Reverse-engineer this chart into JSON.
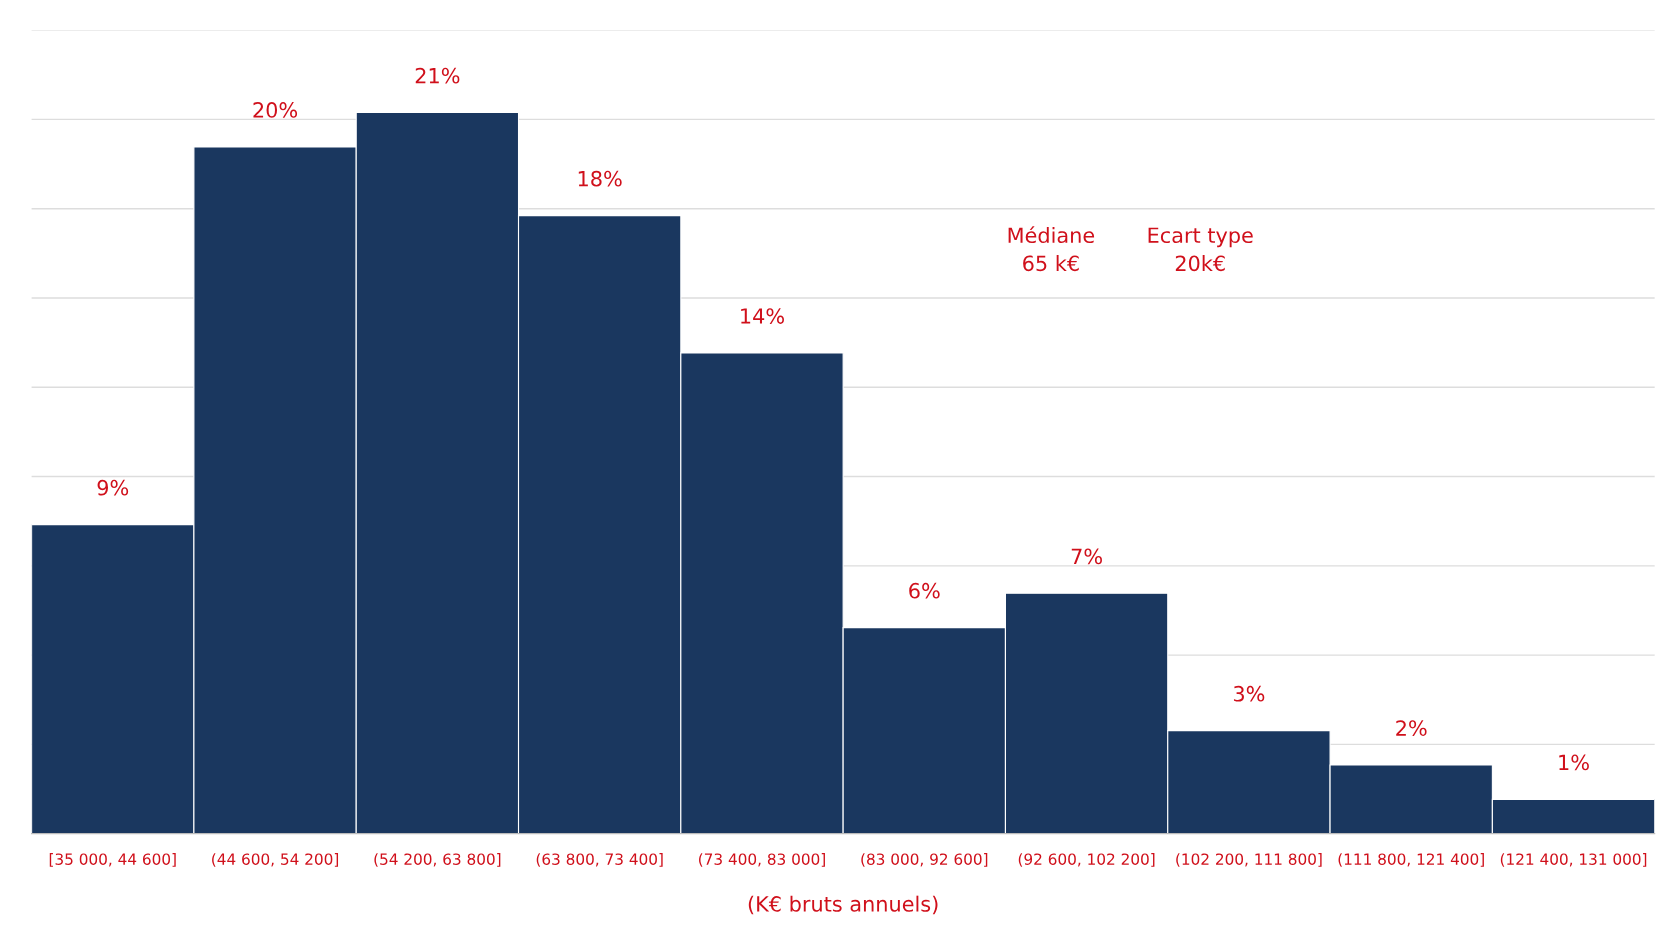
{
  "chart_data": {
    "type": "bar",
    "xlabel": "(K€ bruts annuels)",
    "categories": [
      "[35 000, 44 600]",
      "(44 600, 54 200]",
      "(54 200, 63 800]",
      "(63 800, 73 400]",
      "(73 400, 83 000]",
      "(83 000, 92 600]",
      "(92 600, 102 200]",
      "(102 200, 111 800]",
      "(111 800, 121 400]",
      "(121 400, 131 000]"
    ],
    "values": [
      9,
      20,
      21,
      18,
      14,
      6,
      7,
      3,
      2,
      1
    ],
    "value_labels": [
      "9%",
      "20%",
      "21%",
      "18%",
      "14%",
      "6%",
      "7%",
      "3%",
      "2%",
      "1%"
    ],
    "color": "#1a375f",
    "ylim": [
      0,
      23.4
    ],
    "yticks": [
      {
        "value": 0,
        "label": null
      },
      {
        "value": 2.6,
        "label": null
      },
      {
        "value": 5.2,
        "label": null
      },
      {
        "value": 7.8,
        "label": null
      },
      {
        "value": 10.4,
        "label": null
      },
      {
        "value": 13,
        "label": null
      },
      {
        "value": 15.6,
        "label": null
      },
      {
        "value": 18.2,
        "label": null
      },
      {
        "value": 20.8,
        "label": null
      },
      {
        "value": 23.4,
        "label": null
      }
    ],
    "tick_labels": "x",
    "grid": "y",
    "annotations": [
      "Médiane\n65 k€",
      "Ecart type\n20k€"
    ]
  }
}
